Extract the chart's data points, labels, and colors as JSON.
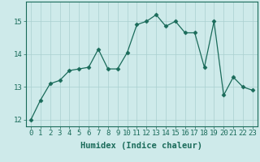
{
  "x": [
    0,
    1,
    2,
    3,
    4,
    5,
    6,
    7,
    8,
    9,
    10,
    11,
    12,
    13,
    14,
    15,
    16,
    17,
    18,
    19,
    20,
    21,
    22,
    23
  ],
  "y": [
    12.0,
    12.6,
    13.1,
    13.2,
    13.5,
    13.55,
    13.6,
    14.15,
    13.55,
    13.55,
    14.05,
    14.9,
    15.0,
    15.2,
    14.85,
    15.0,
    14.65,
    14.65,
    13.6,
    15.0,
    12.75,
    13.3,
    13.0,
    12.9
  ],
  "xlabel": "Humidex (Indice chaleur)",
  "ylim": [
    11.8,
    15.6
  ],
  "xlim": [
    -0.5,
    23.5
  ],
  "yticks": [
    12,
    13,
    14,
    15
  ],
  "xticks": [
    0,
    1,
    2,
    3,
    4,
    5,
    6,
    7,
    8,
    9,
    10,
    11,
    12,
    13,
    14,
    15,
    16,
    17,
    18,
    19,
    20,
    21,
    22,
    23
  ],
  "line_color": "#1a6b5a",
  "marker": "D",
  "marker_size": 2.5,
  "bg_color": "#ceeaea",
  "grid_color": "#aacfcf",
  "font_color": "#1a6b5a",
  "tick_fontsize": 6.5,
  "xlabel_fontsize": 7.5
}
